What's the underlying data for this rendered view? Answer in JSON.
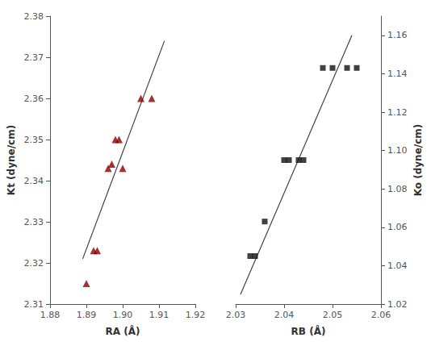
{
  "chart_data": [
    {
      "type": "scatter",
      "xlabel": "RA (Å)",
      "ylabel": "Kt (dyne/cm)",
      "xlim": [
        1.88,
        1.92
      ],
      "xticks": [
        1.88,
        1.89,
        {
          "value": 1.9,
          "label": "1.90"
        },
        1.91,
        1.92
      ],
      "ylim": [
        2.31,
        2.38
      ],
      "yticks": [
        2.31,
        2.32,
        2.33,
        2.34,
        2.35,
        2.36,
        2.37,
        2.38
      ],
      "grid": false,
      "series": [
        {
          "type": "line",
          "color": "#444444",
          "line_style": "solid",
          "x": [
            1.889,
            1.9115
          ],
          "values": [
            2.321,
            2.374
          ]
        },
        {
          "type": "scatter",
          "color": "#8B0000",
          "marker": "triangle",
          "x": [
            1.89,
            1.892,
            1.893,
            1.896,
            1.897,
            1.898,
            1.899,
            1.9,
            1.905,
            1.908
          ],
          "values": [
            2.315,
            2.323,
            2.323,
            2.343,
            2.344,
            2.35,
            2.35,
            2.343,
            2.36,
            2.36
          ]
        }
      ]
    },
    {
      "type": "scatter",
      "xlabel": "RB (Å)",
      "y2label": "Ko (dyne/cm)",
      "xlim": [
        2.03,
        2.06
      ],
      "xticks": [
        2.03,
        2.04,
        2.05,
        2.06
      ],
      "y2lim": [
        1.02,
        1.17
      ],
      "y2ticks": [
        1.02,
        1.04,
        1.06,
        1.08,
        {
          "value": 1.1,
          "label": "1.10"
        },
        1.12,
        1.14,
        1.16
      ],
      "grid": false,
      "series": [
        {
          "type": "line",
          "color": "#444444",
          "line_style": "solid",
          "axis": "y2",
          "x": [
            2.031,
            2.054
          ],
          "values": [
            1.025,
            1.16
          ]
        },
        {
          "type": "scatter",
          "color": "#111111",
          "marker": "square",
          "axis": "y2",
          "x": [
            2.033,
            2.034,
            2.036,
            2.04,
            2.041,
            2.043,
            2.044,
            2.048,
            2.05,
            2.053,
            2.055
          ],
          "values": [
            1.045,
            1.045,
            1.063,
            1.095,
            1.095,
            1.095,
            1.095,
            1.143,
            1.143,
            1.143,
            1.143
          ]
        }
      ]
    }
  ]
}
